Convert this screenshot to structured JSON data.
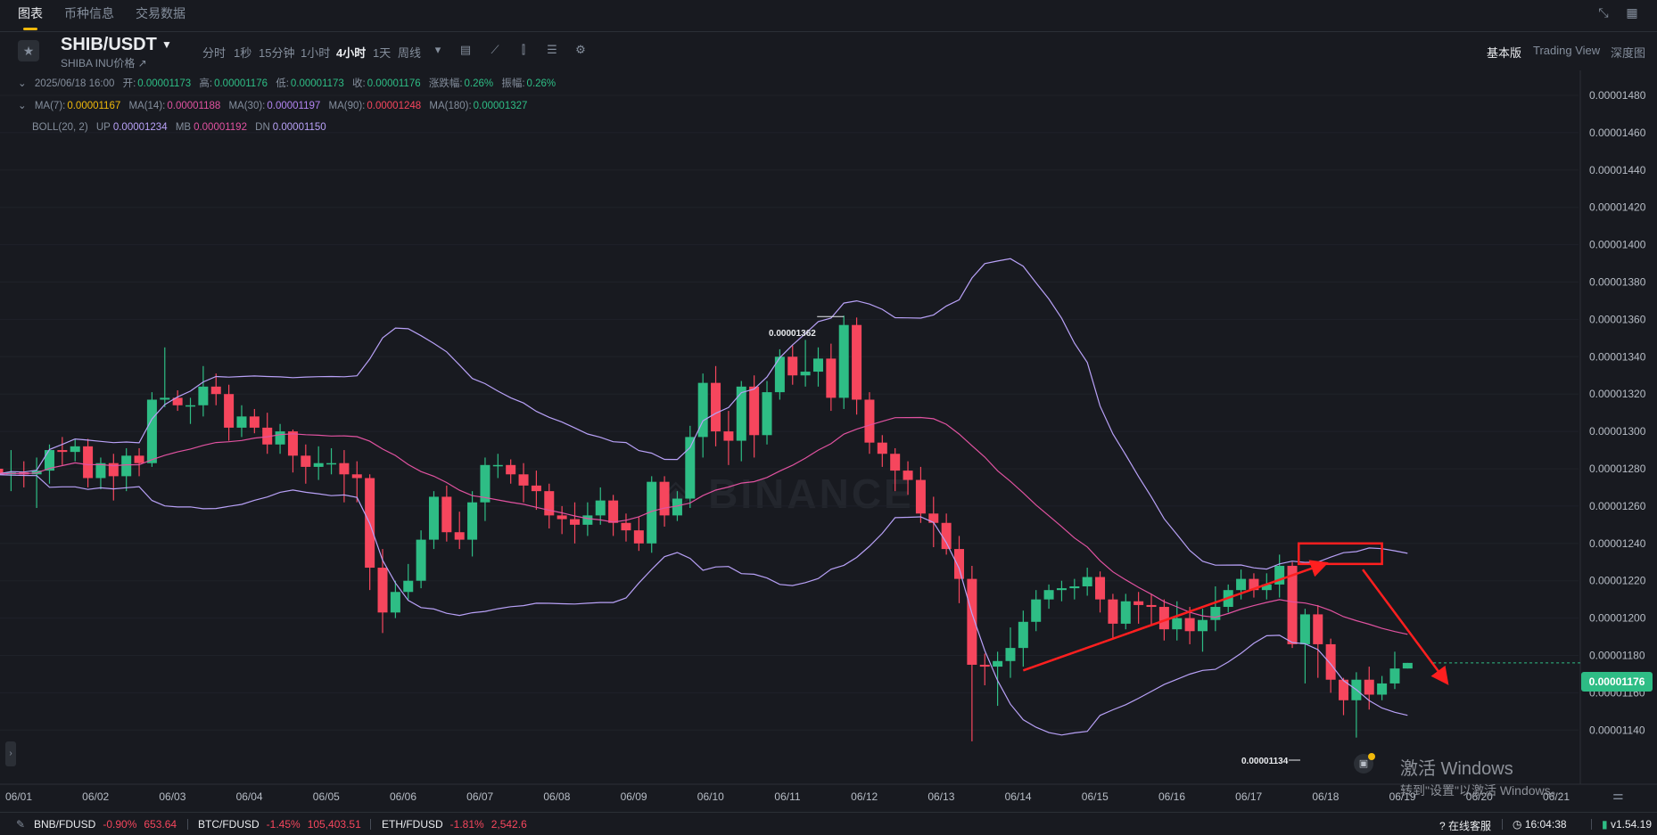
{
  "topbar": {
    "tabs": [
      "图表",
      "币种信息",
      "交易数据"
    ],
    "icons": [
      "collapse-icon",
      "grid-icon"
    ]
  },
  "toolbar": {
    "pair": "SHIB/USDT",
    "subtitle": "SHIBA INU价格 ↗",
    "intervals": [
      "分时",
      "1秒",
      "15分钟",
      "1小时",
      "4小时",
      "1天",
      "周线"
    ],
    "active_interval": "4小时",
    "views": [
      "基本版",
      "Trading View",
      "深度图"
    ],
    "active_view": "基本版"
  },
  "info": {
    "datetime": "2025/06/18 16:00",
    "open_label": "开:",
    "open": "0.00001173",
    "high_label": "高:",
    "high": "0.00001176",
    "low_label": "低:",
    "low": "0.00001173",
    "close_label": "收:",
    "close": "0.00001176",
    "change_label": "涨跌幅:",
    "change": "0.26%",
    "amp_label": "振幅:",
    "amp": "0.26%"
  },
  "ma": {
    "ma7_label": "MA(7):",
    "ma7": "0.00001167",
    "ma14_label": "MA(14):",
    "ma14": "0.00001188",
    "ma30_label": "MA(30):",
    "ma30": "0.00001197",
    "ma90_label": "MA(90):",
    "ma90": "0.00001248",
    "ma180_label": "MA(180):",
    "ma180": "0.00001327"
  },
  "boll": {
    "label": "BOLL(20, 2)",
    "up_label": "UP",
    "up": "0.00001234",
    "mb_label": "MB",
    "mb": "0.00001192",
    "dn_label": "DN",
    "dn": "0.00001150"
  },
  "chart_data": {
    "type": "candlestick",
    "y_ticks": [
      "0.00001480",
      "0.00001460",
      "0.00001440",
      "0.00001420",
      "0.00001400",
      "0.00001380",
      "0.00001360",
      "0.00001340",
      "0.00001320",
      "0.00001300",
      "0.00001280",
      "0.00001260",
      "0.00001240",
      "0.00001220",
      "0.00001200",
      "0.00001180",
      "0.00001160",
      "0.00001140"
    ],
    "x_ticks": [
      "06/01",
      "06/02",
      "06/03",
      "06/04",
      "06/05",
      "06/06",
      "06/07",
      "06/08",
      "06/09",
      "06/10",
      "06/11",
      "06/12",
      "06/13",
      "06/14",
      "06/15",
      "06/16",
      "06/17",
      "06/18",
      "06/19",
      "06/20",
      "06/21"
    ],
    "ylim": [
      1.126e-05,
      1.496e-05
    ],
    "high_marker": "0.00001362",
    "low_marker": "0.00001134",
    "last_price": "0.00001176",
    "candles": [
      [
        1.28,
        1.277,
        1.285,
        1.272
      ],
      [
        1.277,
        1.278,
        1.29,
        1.268
      ],
      [
        1.278,
        1.277,
        1.284,
        1.27
      ],
      [
        1.277,
        1.279,
        1.286,
        1.259
      ],
      [
        1.279,
        1.29,
        1.293,
        1.272
      ],
      [
        1.29,
        1.289,
        1.297,
        1.282
      ],
      [
        1.289,
        1.292,
        1.296,
        1.284
      ],
      [
        1.292,
        1.275,
        1.296,
        1.27
      ],
      [
        1.275,
        1.283,
        1.286,
        1.269
      ],
      [
        1.283,
        1.276,
        1.288,
        1.263
      ],
      [
        1.276,
        1.287,
        1.291,
        1.268
      ],
      [
        1.287,
        1.283,
        1.291,
        1.276
      ],
      [
        1.283,
        1.317,
        1.321,
        1.281
      ],
      [
        1.317,
        1.318,
        1.345,
        1.313
      ],
      [
        1.318,
        1.314,
        1.322,
        1.311
      ],
      [
        1.314,
        1.314,
        1.318,
        1.304
      ],
      [
        1.314,
        1.324,
        1.335,
        1.308
      ],
      [
        1.324,
        1.32,
        1.331,
        1.314
      ],
      [
        1.32,
        1.302,
        1.325,
        1.295
      ],
      [
        1.302,
        1.308,
        1.314,
        1.297
      ],
      [
        1.308,
        1.302,
        1.312,
        1.299
      ],
      [
        1.302,
        1.293,
        1.31,
        1.288
      ],
      [
        1.293,
        1.3,
        1.304,
        1.288
      ],
      [
        1.3,
        1.287,
        1.301,
        1.278
      ],
      [
        1.287,
        1.281,
        1.293,
        1.272
      ],
      [
        1.281,
        1.283,
        1.292,
        1.274
      ],
      [
        1.283,
        1.283,
        1.291,
        1.277
      ],
      [
        1.283,
        1.277,
        1.29,
        1.262
      ],
      [
        1.277,
        1.275,
        1.284,
        1.262
      ],
      [
        1.275,
        1.227,
        1.277,
        1.215
      ],
      [
        1.227,
        1.203,
        1.237,
        1.192
      ],
      [
        1.203,
        1.214,
        1.22,
        1.2
      ],
      [
        1.214,
        1.22,
        1.229,
        1.21
      ],
      [
        1.22,
        1.242,
        1.247,
        1.216
      ],
      [
        1.242,
        1.265,
        1.268,
        1.237
      ],
      [
        1.265,
        1.246,
        1.271,
        1.241
      ],
      [
        1.246,
        1.242,
        1.257,
        1.237
      ],
      [
        1.242,
        1.262,
        1.268,
        1.233
      ],
      [
        1.262,
        1.282,
        1.286,
        1.252
      ],
      [
        1.282,
        1.282,
        1.288,
        1.275
      ],
      [
        1.282,
        1.277,
        1.285,
        1.272
      ],
      [
        1.277,
        1.271,
        1.283,
        1.262
      ],
      [
        1.271,
        1.268,
        1.279,
        1.258
      ],
      [
        1.268,
        1.255,
        1.272,
        1.248
      ],
      [
        1.255,
        1.253,
        1.26,
        1.245
      ],
      [
        1.253,
        1.25,
        1.262,
        1.24
      ],
      [
        1.25,
        1.255,
        1.262,
        1.244
      ],
      [
        1.255,
        1.263,
        1.27,
        1.25
      ],
      [
        1.263,
        1.251,
        1.266,
        1.244
      ],
      [
        1.251,
        1.247,
        1.256,
        1.241
      ],
      [
        1.247,
        1.24,
        1.254,
        1.236
      ],
      [
        1.24,
        1.273,
        1.276,
        1.235
      ],
      [
        1.273,
        1.255,
        1.276,
        1.249
      ],
      [
        1.255,
        1.264,
        1.268,
        1.252
      ],
      [
        1.264,
        1.297,
        1.303,
        1.259
      ],
      [
        1.297,
        1.326,
        1.331,
        1.286
      ],
      [
        1.326,
        1.3,
        1.335,
        1.292
      ],
      [
        1.3,
        1.295,
        1.311,
        1.282
      ],
      [
        1.295,
        1.324,
        1.327,
        1.284
      ],
      [
        1.324,
        1.298,
        1.33,
        1.286
      ],
      [
        1.298,
        1.321,
        1.327,
        1.293
      ],
      [
        1.321,
        1.34,
        1.344,
        1.317
      ],
      [
        1.34,
        1.33,
        1.346,
        1.325
      ],
      [
        1.33,
        1.332,
        1.349,
        1.324
      ],
      [
        1.332,
        1.339,
        1.345,
        1.324
      ],
      [
        1.339,
        1.318,
        1.347,
        1.311
      ],
      [
        1.318,
        1.357,
        1.362,
        1.312
      ],
      [
        1.357,
        1.317,
        1.361,
        1.309
      ],
      [
        1.317,
        1.294,
        1.321,
        1.288
      ],
      [
        1.294,
        1.288,
        1.298,
        1.281
      ],
      [
        1.288,
        1.279,
        1.291,
        1.268
      ],
      [
        1.279,
        1.274,
        1.284,
        1.266
      ],
      [
        1.274,
        1.256,
        1.281,
        1.251
      ],
      [
        1.256,
        1.251,
        1.265,
        1.238
      ],
      [
        1.251,
        1.237,
        1.256,
        1.234
      ],
      [
        1.237,
        1.221,
        1.244,
        1.208
      ],
      [
        1.221,
        1.175,
        1.228,
        1.134
      ],
      [
        1.175,
        1.174,
        1.181,
        1.164
      ],
      [
        1.174,
        1.177,
        1.182,
        1.153
      ],
      [
        1.177,
        1.184,
        1.195,
        1.168
      ],
      [
        1.184,
        1.198,
        1.204,
        1.174
      ],
      [
        1.198,
        1.21,
        1.215,
        1.193
      ],
      [
        1.21,
        1.215,
        1.218,
        1.205
      ],
      [
        1.215,
        1.216,
        1.22,
        1.209
      ],
      [
        1.216,
        1.217,
        1.221,
        1.21
      ],
      [
        1.217,
        1.222,
        1.227,
        1.212
      ],
      [
        1.222,
        1.21,
        1.225,
        1.203
      ],
      [
        1.21,
        1.197,
        1.213,
        1.189
      ],
      [
        1.197,
        1.209,
        1.213,
        1.194
      ],
      [
        1.209,
        1.207,
        1.214,
        1.197
      ],
      [
        1.207,
        1.206,
        1.213,
        1.196
      ],
      [
        1.206,
        1.194,
        1.21,
        1.188
      ],
      [
        1.194,
        1.2,
        1.209,
        1.188
      ],
      [
        1.2,
        1.193,
        1.206,
        1.186
      ],
      [
        1.193,
        1.199,
        1.205,
        1.182
      ],
      [
        1.199,
        1.206,
        1.217,
        1.193
      ],
      [
        1.206,
        1.215,
        1.218,
        1.203
      ],
      [
        1.215,
        1.221,
        1.226,
        1.21
      ],
      [
        1.221,
        1.215,
        1.224,
        1.211
      ],
      [
        1.215,
        1.218,
        1.224,
        1.21
      ],
      [
        1.218,
        1.228,
        1.234,
        1.211
      ],
      [
        1.228,
        1.186,
        1.23,
        1.184
      ],
      [
        1.186,
        1.202,
        1.205,
        1.165
      ],
      [
        1.202,
        1.186,
        1.207,
        1.168
      ],
      [
        1.186,
        1.167,
        1.189,
        1.16
      ],
      [
        1.167,
        1.156,
        1.168,
        1.148
      ],
      [
        1.156,
        1.167,
        1.171,
        1.136
      ],
      [
        1.167,
        1.159,
        1.174,
        1.151
      ],
      [
        1.159,
        1.165,
        1.169,
        1.156
      ],
      [
        1.165,
        1.173,
        1.182,
        1.162
      ],
      [
        1.173,
        1.176,
        1.176,
        1.173
      ]
    ]
  },
  "annotations": {
    "red_box_range": [
      1.229,
      1.24
    ],
    "arrows": "uptrend into box, then down"
  },
  "watermark": {
    "logo": "BINANCE",
    "line1": "激活 Windows",
    "line2": "转到\"设置\"以激活 Windows。"
  },
  "bottombar": {
    "tickers": [
      {
        "sym": "BNB/FDUSD",
        "chg": "-0.90%",
        "price": "653.64"
      },
      {
        "sym": "BTC/FDUSD",
        "chg": "-1.45%",
        "price": "105,403.51"
      },
      {
        "sym": "ETH/FDUSD",
        "chg": "-1.81%",
        "price": "2,542.6"
      }
    ],
    "support": "在线客服",
    "time": "16:04:38",
    "version": "v1.54.19"
  },
  "colors": {
    "up": "#2ebd85",
    "down": "#f6465d",
    "ma7": "#f0b90b",
    "ma14": "#e052a0",
    "ma30": "#b284f0",
    "ma90": "#f6465d",
    "ma180": "#2ebd85",
    "boll_up": "#b8a1f7",
    "boll_mb": "#e052a0",
    "boll_dn": "#b8a1f7",
    "accent": "#f0b90b"
  }
}
